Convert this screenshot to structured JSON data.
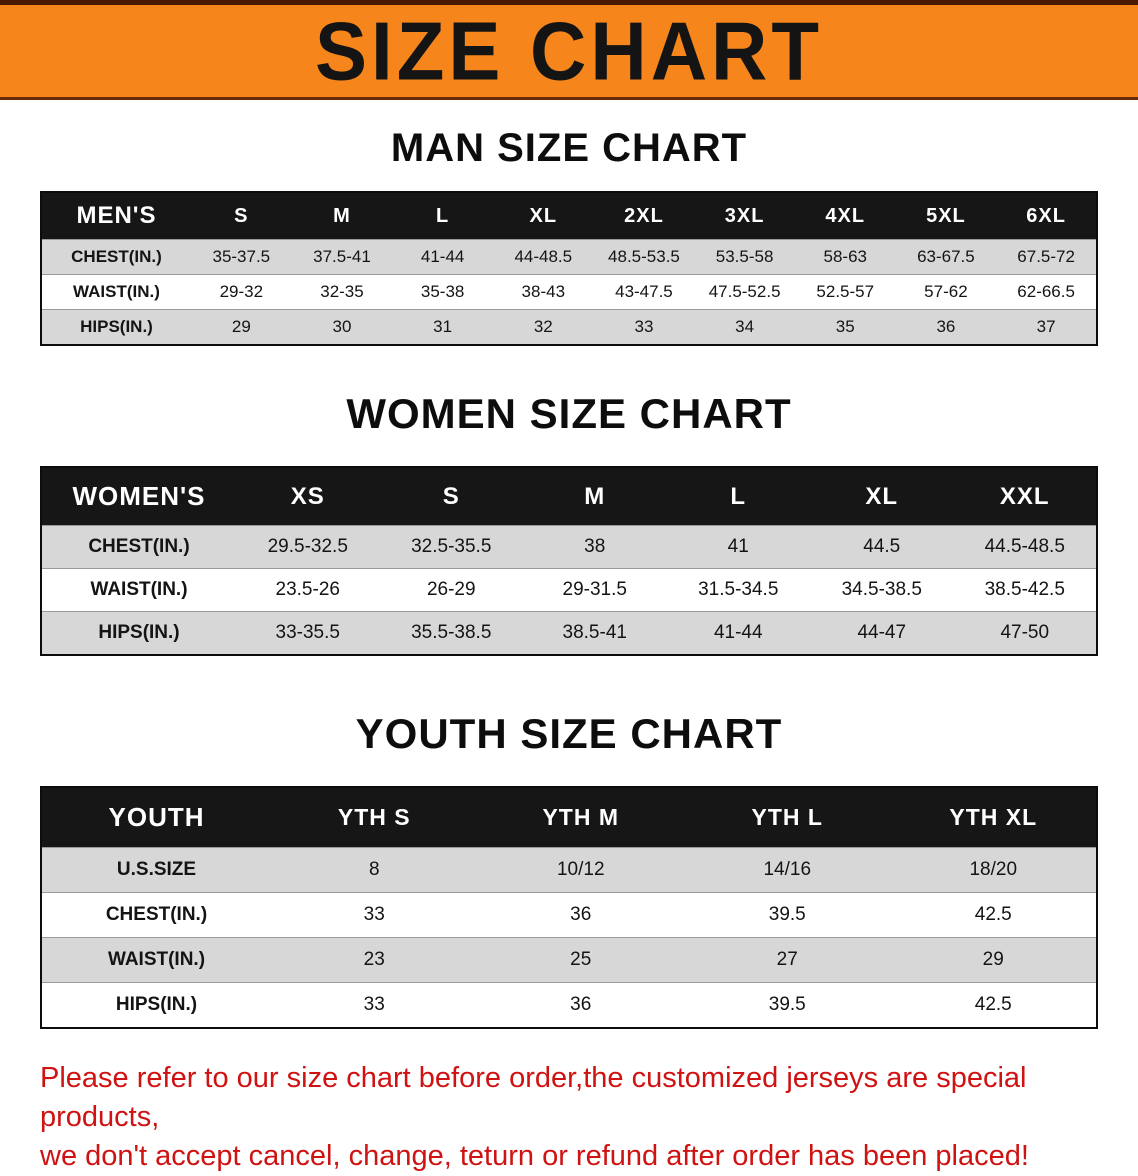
{
  "banner": {
    "title": "SIZE CHART",
    "bg_color": "#f6861c"
  },
  "sections": {
    "men": {
      "heading": "MAN SIZE CHART",
      "table": {
        "header": [
          "MEN'S",
          "S",
          "M",
          "L",
          "XL",
          "2XL",
          "3XL",
          "4XL",
          "5XL",
          "6XL"
        ],
        "rows": [
          [
            "CHEST(IN.)",
            "35-37.5",
            "37.5-41",
            "41-44",
            "44-48.5",
            "48.5-53.5",
            "53.5-58",
            "58-63",
            "63-67.5",
            "67.5-72"
          ],
          [
            "WAIST(IN.)",
            "29-32",
            "32-35",
            "35-38",
            "38-43",
            "43-47.5",
            "47.5-52.5",
            "52.5-57",
            "57-62",
            "62-66.5"
          ],
          [
            "HIPS(IN.)",
            "29",
            "30",
            "31",
            "32",
            "33",
            "34",
            "35",
            "36",
            "37"
          ]
        ]
      }
    },
    "women": {
      "heading": "WOMEN SIZE CHART",
      "table": {
        "header": [
          "WOMEN'S",
          "XS",
          "S",
          "M",
          "L",
          "XL",
          "XXL"
        ],
        "rows": [
          [
            "CHEST(IN.)",
            "29.5-32.5",
            "32.5-35.5",
            "38",
            "41",
            "44.5",
            "44.5-48.5"
          ],
          [
            "WAIST(IN.)",
            "23.5-26",
            "26-29",
            "29-31.5",
            "31.5-34.5",
            "34.5-38.5",
            "38.5-42.5"
          ],
          [
            "HIPS(IN.)",
            "33-35.5",
            "35.5-38.5",
            "38.5-41",
            "41-44",
            "44-47",
            "47-50"
          ]
        ]
      }
    },
    "youth": {
      "heading": "YOUTH SIZE CHART",
      "table": {
        "header": [
          "YOUTH",
          "YTH S",
          "YTH M",
          "YTH L",
          "YTH XL"
        ],
        "rows": [
          [
            "U.S.SIZE",
            "8",
            "10/12",
            "14/16",
            "18/20"
          ],
          [
            "CHEST(IN.)",
            "33",
            "36",
            "39.5",
            "42.5"
          ],
          [
            "WAIST(IN.)",
            "23",
            "25",
            "27",
            "29"
          ],
          [
            "HIPS(IN.)",
            "33",
            "36",
            "39.5",
            "42.5"
          ]
        ]
      }
    }
  },
  "footer": {
    "line1": "Please refer to our size chart before order,the customized jerseys are special products,",
    "line2": "we don't accept cancel, change, teturn or refund after order has been placed!",
    "text_color": "#cf1212"
  }
}
